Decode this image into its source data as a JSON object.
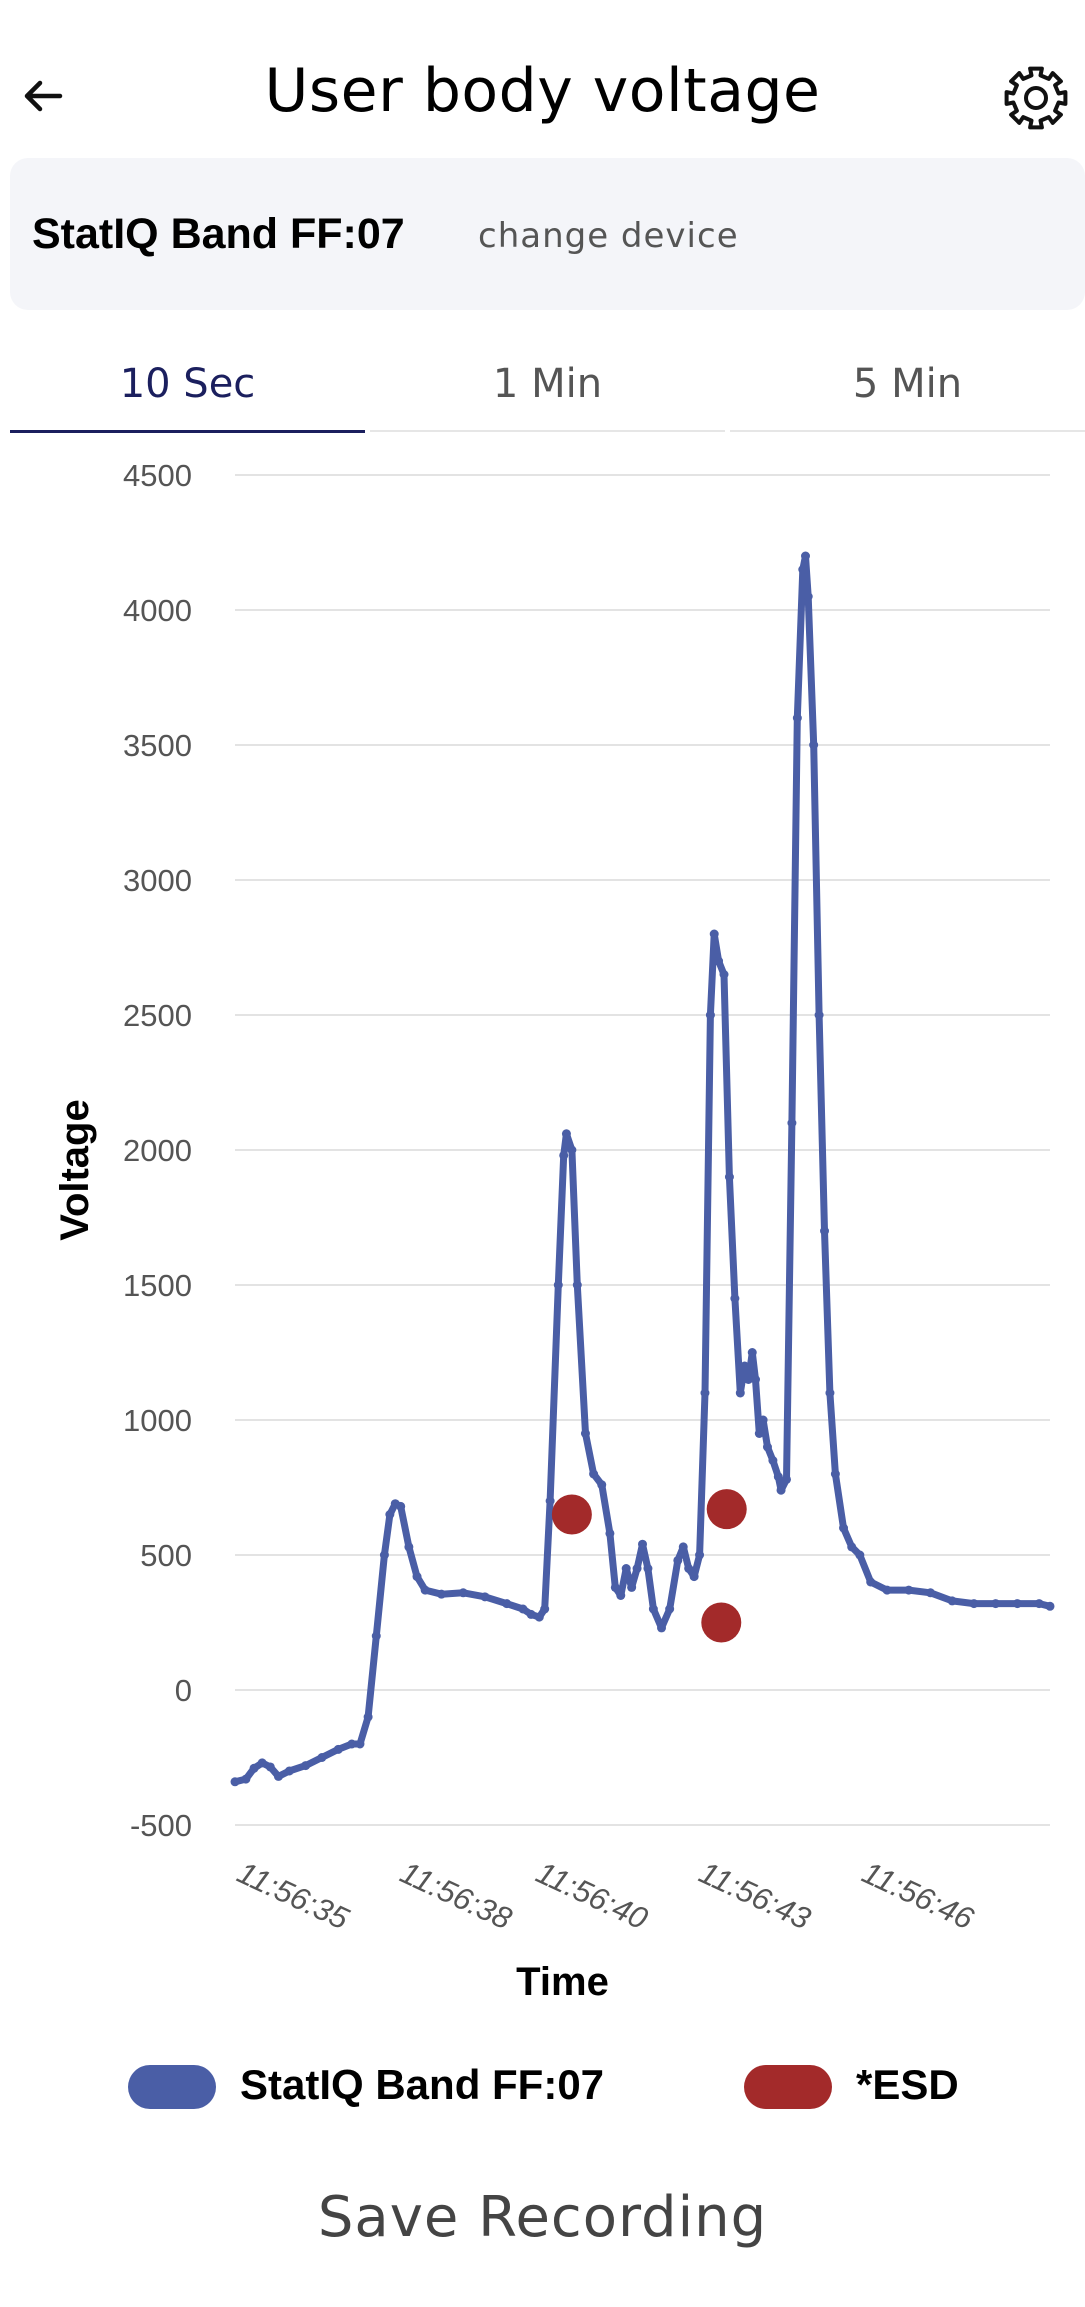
{
  "header": {
    "title": "User body voltage",
    "back_icon": "arrow-left-icon",
    "settings_icon": "gear-icon"
  },
  "device": {
    "name": "StatIQ Band FF:07",
    "change_label": "change device"
  },
  "tabs": [
    {
      "label": "10 Sec",
      "active": true
    },
    {
      "label": "1 Min",
      "active": false
    },
    {
      "label": "5 Min",
      "active": false
    }
  ],
  "colors": {
    "series_line": "#4a5ea6",
    "esd_marker": "#a32a2a",
    "active_tab": "#1b1f5e",
    "grid": "#e3e3e3"
  },
  "chart_data": {
    "type": "line",
    "xlabel": "Time",
    "ylabel": "Voltage",
    "ylim": [
      -500,
      4500
    ],
    "y_ticks": [
      4500,
      4000,
      3500,
      3000,
      2500,
      2000,
      1500,
      1000,
      500,
      0,
      -500
    ],
    "x_tick_labels": [
      "11:56:35",
      "11:56:38",
      "11:56:40",
      "11:56:43",
      "11:56:46"
    ],
    "x_ticks_seconds": [
      0,
      3,
      5.5,
      8.5,
      11.5
    ],
    "xlim_seconds": [
      0,
      15
    ],
    "grid": true,
    "legend_position": "bottom",
    "series": [
      {
        "name": "StatIQ Band FF:07",
        "kind": "line",
        "points": [
          [
            0.0,
            -340
          ],
          [
            0.2,
            -330
          ],
          [
            0.35,
            -290
          ],
          [
            0.5,
            -270
          ],
          [
            0.65,
            -285
          ],
          [
            0.8,
            -320
          ],
          [
            1.0,
            -300
          ],
          [
            1.3,
            -280
          ],
          [
            1.6,
            -250
          ],
          [
            1.9,
            -220
          ],
          [
            2.15,
            -200
          ],
          [
            2.3,
            -200
          ],
          [
            2.45,
            -100
          ],
          [
            2.6,
            200
          ],
          [
            2.75,
            500
          ],
          [
            2.85,
            650
          ],
          [
            2.95,
            690
          ],
          [
            3.05,
            680
          ],
          [
            3.2,
            530
          ],
          [
            3.35,
            420
          ],
          [
            3.5,
            370
          ],
          [
            3.8,
            355
          ],
          [
            4.2,
            360
          ],
          [
            4.6,
            345
          ],
          [
            5.0,
            320
          ],
          [
            5.3,
            300
          ],
          [
            5.45,
            280
          ],
          [
            5.6,
            270
          ],
          [
            5.7,
            300
          ],
          [
            5.8,
            700
          ],
          [
            5.95,
            1500
          ],
          [
            6.05,
            1980
          ],
          [
            6.1,
            2060
          ],
          [
            6.2,
            2000
          ],
          [
            6.3,
            1500
          ],
          [
            6.45,
            950
          ],
          [
            6.6,
            800
          ],
          [
            6.75,
            760
          ],
          [
            6.9,
            580
          ],
          [
            7.0,
            380
          ],
          [
            7.1,
            350
          ],
          [
            7.2,
            450
          ],
          [
            7.3,
            380
          ],
          [
            7.4,
            450
          ],
          [
            7.5,
            540
          ],
          [
            7.6,
            450
          ],
          [
            7.7,
            300
          ],
          [
            7.85,
            230
          ],
          [
            8.0,
            300
          ],
          [
            8.15,
            480
          ],
          [
            8.25,
            530
          ],
          [
            8.35,
            450
          ],
          [
            8.45,
            420
          ],
          [
            8.55,
            500
          ],
          [
            8.65,
            1100
          ],
          [
            8.75,
            2500
          ],
          [
            8.82,
            2800
          ],
          [
            8.9,
            2700
          ],
          [
            9.0,
            2650
          ],
          [
            9.1,
            1900
          ],
          [
            9.2,
            1450
          ],
          [
            9.3,
            1100
          ],
          [
            9.38,
            1200
          ],
          [
            9.45,
            1150
          ],
          [
            9.52,
            1250
          ],
          [
            9.58,
            1150
          ],
          [
            9.65,
            950
          ],
          [
            9.72,
            1000
          ],
          [
            9.8,
            900
          ],
          [
            9.9,
            850
          ],
          [
            10.0,
            790
          ],
          [
            10.05,
            740
          ],
          [
            10.15,
            780
          ],
          [
            10.25,
            2100
          ],
          [
            10.35,
            3600
          ],
          [
            10.45,
            4150
          ],
          [
            10.5,
            4200
          ],
          [
            10.55,
            4050
          ],
          [
            10.65,
            3500
          ],
          [
            10.75,
            2500
          ],
          [
            10.85,
            1700
          ],
          [
            10.95,
            1100
          ],
          [
            11.05,
            800
          ],
          [
            11.2,
            600
          ],
          [
            11.35,
            530
          ],
          [
            11.5,
            500
          ],
          [
            11.7,
            400
          ],
          [
            12.0,
            370
          ],
          [
            12.4,
            370
          ],
          [
            12.8,
            360
          ],
          [
            13.2,
            330
          ],
          [
            13.6,
            320
          ],
          [
            14.0,
            320
          ],
          [
            14.4,
            320
          ],
          [
            14.8,
            320
          ],
          [
            15.0,
            310
          ]
        ]
      },
      {
        "name": "*ESD",
        "kind": "scatter",
        "points": [
          [
            6.2,
            650
          ],
          [
            9.05,
            670
          ],
          [
            8.95,
            250
          ]
        ]
      }
    ]
  },
  "legend": [
    {
      "label": "StatIQ Band FF:07"
    },
    {
      "label": "*ESD"
    }
  ],
  "save_label": "Save Recording"
}
